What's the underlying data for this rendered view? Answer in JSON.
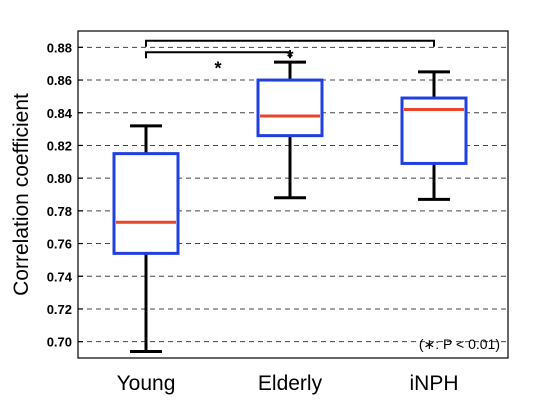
{
  "chart_data": {
    "type": "box",
    "ylabel": "Correlation coefficient",
    "ylim": [
      0.69,
      0.89
    ],
    "yticks": [
      "0.70",
      "0.72",
      "0.74",
      "0.76",
      "0.78",
      "0.80",
      "0.82",
      "0.84",
      "0.86",
      "0.88"
    ],
    "grid": "horizontal-dashed",
    "categories": [
      "Young",
      "Elderly",
      "iNPH"
    ],
    "boxes": [
      {
        "category": "Young",
        "whisker_low": 0.694,
        "q1": 0.754,
        "median": 0.773,
        "q3": 0.815,
        "whisker_high": 0.832
      },
      {
        "category": "Elderly",
        "whisker_low": 0.788,
        "q1": 0.826,
        "median": 0.838,
        "q3": 0.86,
        "whisker_high": 0.871
      },
      {
        "category": "iNPH",
        "whisker_low": 0.787,
        "q1": 0.809,
        "median": 0.842,
        "q3": 0.849,
        "whisker_high": 0.865
      }
    ],
    "significance": [
      {
        "from": "Young",
        "to": "Elderly",
        "symbol": "*",
        "y": 0.877
      },
      {
        "from": "Young",
        "to": "iNPH",
        "symbol": "*",
        "y": 0.884
      }
    ],
    "note": "(∗: P < 0.01)",
    "colors": {
      "box": "#1f3fe0",
      "median": "#e8452a",
      "whisker": "#000000",
      "grid": "#444444"
    }
  }
}
